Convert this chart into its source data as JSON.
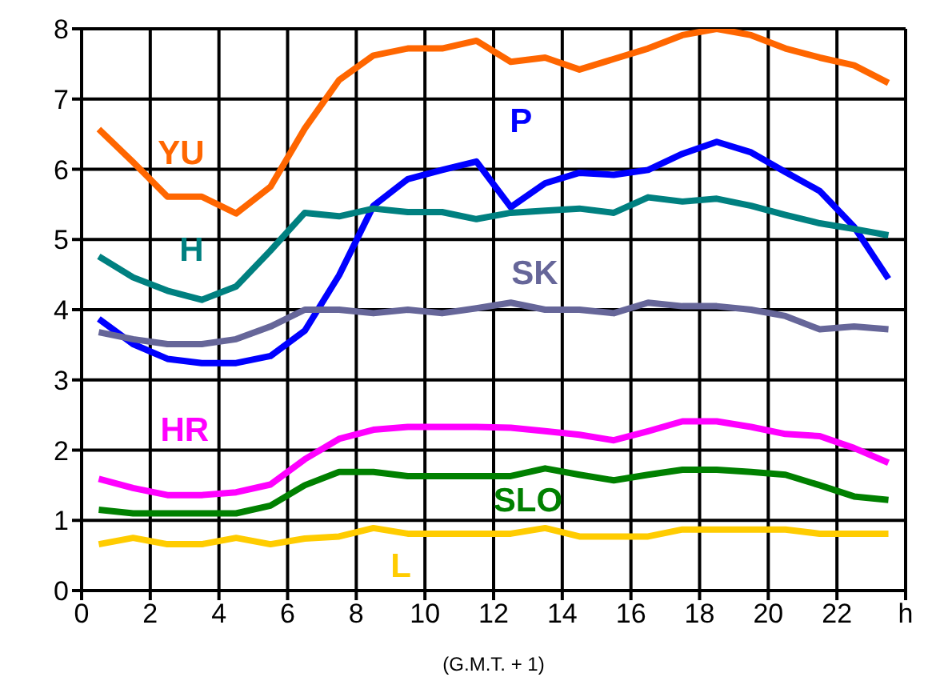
{
  "chart_data": {
    "type": "line",
    "xlabel": "(G.M.T. + 1)",
    "x": [
      0.5,
      1.5,
      2.5,
      3.5,
      4.5,
      5.5,
      6.5,
      7.5,
      8.5,
      9.5,
      10.5,
      11.5,
      12.5,
      13.5,
      14.5,
      15.5,
      16.5,
      17.5,
      18.5,
      19.5,
      20.5,
      21.5,
      22.5,
      23.5
    ],
    "series": [
      {
        "name": "YU",
        "color": "#ff6600",
        "values": [
          6.57,
          6.1,
          5.61,
          5.61,
          5.37,
          5.75,
          6.58,
          7.27,
          7.62,
          7.72,
          7.72,
          7.83,
          7.53,
          7.59,
          7.42,
          7.57,
          7.72,
          7.91,
          8.0,
          7.91,
          7.72,
          7.59,
          7.48,
          7.23
        ]
      },
      {
        "name": "P",
        "color": "#0000ff",
        "values": [
          3.87,
          3.51,
          3.3,
          3.24,
          3.24,
          3.34,
          3.7,
          4.49,
          5.48,
          5.86,
          5.99,
          6.11,
          5.46,
          5.8,
          5.95,
          5.92,
          5.99,
          6.22,
          6.39,
          6.24,
          5.96,
          5.69,
          5.18,
          4.44
        ]
      },
      {
        "name": "H",
        "color": "#008080",
        "values": [
          4.76,
          4.46,
          4.27,
          4.14,
          4.33,
          4.84,
          5.38,
          5.33,
          5.44,
          5.39,
          5.39,
          5.29,
          5.38,
          5.41,
          5.44,
          5.38,
          5.6,
          5.54,
          5.58,
          5.48,
          5.35,
          5.23,
          5.15,
          5.06
        ]
      },
      {
        "name": "SK",
        "color": "#666699",
        "values": [
          3.68,
          3.58,
          3.51,
          3.51,
          3.58,
          3.76,
          4.0,
          4.0,
          3.95,
          4.0,
          3.95,
          4.02,
          4.1,
          4.0,
          4.0,
          3.95,
          4.1,
          4.05,
          4.05,
          4.0,
          3.91,
          3.72,
          3.76,
          3.72
        ]
      },
      {
        "name": "HR",
        "color": "#ff00ff",
        "values": [
          1.59,
          1.46,
          1.36,
          1.36,
          1.4,
          1.51,
          1.87,
          2.16,
          2.29,
          2.33,
          2.33,
          2.33,
          2.32,
          2.27,
          2.22,
          2.14,
          2.27,
          2.41,
          2.41,
          2.33,
          2.23,
          2.2,
          2.03,
          1.82
        ]
      },
      {
        "name": "SLO",
        "color": "#008000",
        "values": [
          1.15,
          1.1,
          1.1,
          1.1,
          1.1,
          1.21,
          1.5,
          1.69,
          1.69,
          1.63,
          1.63,
          1.63,
          1.63,
          1.74,
          1.65,
          1.57,
          1.65,
          1.72,
          1.72,
          1.69,
          1.65,
          1.5,
          1.34,
          1.29
        ]
      },
      {
        "name": "L",
        "color": "#ffcc00",
        "values": [
          0.66,
          0.75,
          0.66,
          0.66,
          0.75,
          0.66,
          0.74,
          0.77,
          0.89,
          0.81,
          0.81,
          0.81,
          0.81,
          0.89,
          0.77,
          0.77,
          0.77,
          0.87,
          0.87,
          0.87,
          0.87,
          0.81,
          0.81,
          0.81
        ]
      }
    ],
    "xlim": [
      0,
      24
    ],
    "xticks": [
      0,
      2,
      4,
      6,
      8,
      10,
      12,
      14,
      16,
      18,
      20,
      22,
      {
        "value": 24,
        "label": "h"
      }
    ],
    "ylim": [
      0,
      8
    ],
    "yticks": [
      0,
      1,
      2,
      3,
      4,
      5,
      6,
      7,
      8
    ],
    "grid": true
  }
}
